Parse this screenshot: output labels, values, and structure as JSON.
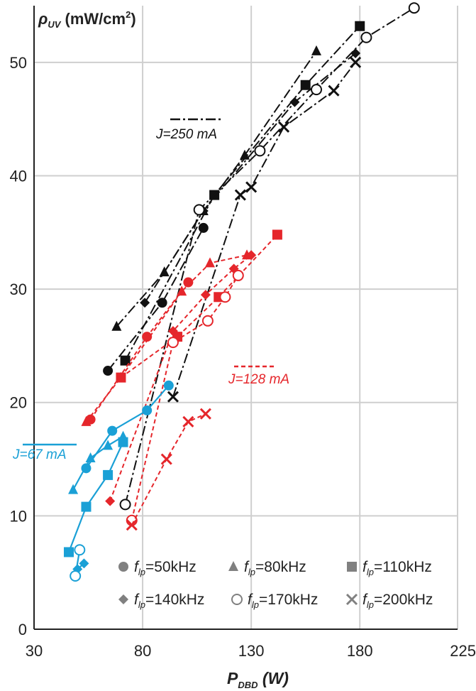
{
  "chart_data": {
    "type": "line",
    "title": "",
    "ylabel": {
      "main": "ρ",
      "sub": "UV",
      "unit_pre": "(mW/cm",
      "unit_sup": "2",
      "unit_post": ")"
    },
    "xlabel": {
      "main": "P",
      "sub": "DBD",
      "unit": "(W)"
    },
    "xlim": [
      30,
      225
    ],
    "ylim": [
      0,
      55
    ],
    "xticks": [
      30,
      80,
      130,
      180,
      225
    ],
    "xtick_labels": [
      "30",
      "80",
      "130",
      "180",
      "225"
    ],
    "yticks": [
      0,
      10,
      20,
      30,
      40,
      50
    ],
    "ytick_labels": [
      "0",
      "10",
      "20",
      "30",
      "40",
      "50"
    ],
    "grid": true,
    "legend_position": "bottom-right",
    "colors": {
      "black": "#111111",
      "red": "#e5262b",
      "blue": "#1aa0d6",
      "gray": "#808080",
      "grid": "#cfcfcf"
    },
    "groups": [
      {
        "label": "J=250 mA",
        "color": "#111111",
        "dash": "14,4,3,4",
        "legend_line": true,
        "solid": false
      },
      {
        "label": "J=128 mA",
        "color": "#e5262b",
        "dash": "6,4",
        "legend_line": true,
        "solid": false
      },
      {
        "label": "J=67 mA",
        "color": "#1aa0d6",
        "dash": "",
        "legend_line": true,
        "solid": true
      }
    ],
    "legend": [
      {
        "marker": "circle",
        "pre": "f",
        "sub": "lp",
        "post": "=50kHz"
      },
      {
        "marker": "triangle",
        "pre": "f",
        "sub": "lp",
        "post": "=80kHz"
      },
      {
        "marker": "square",
        "pre": "f",
        "sub": "lp",
        "post": "=110kHz"
      },
      {
        "marker": "diamond",
        "pre": "f",
        "sub": "lp",
        "post": "=140kHz"
      },
      {
        "marker": "open-circle",
        "pre": "f",
        "sub": "lp",
        "post": "=170kHz"
      },
      {
        "marker": "cross",
        "pre": "f",
        "sub": "lp",
        "post": "=200kHz"
      }
    ],
    "series": [
      {
        "group": 0,
        "marker": "circle",
        "points": [
          [
            64,
            22.8
          ],
          [
            89,
            28.8
          ],
          [
            108,
            35.4
          ]
        ]
      },
      {
        "group": 0,
        "marker": "triangle",
        "points": [
          [
            68,
            26.7
          ],
          [
            90,
            31.5
          ],
          [
            108,
            36.9
          ],
          [
            127,
            41.8
          ],
          [
            160,
            51.0
          ]
        ]
      },
      {
        "group": 0,
        "marker": "square",
        "points": [
          [
            72,
            23.7
          ],
          [
            113,
            38.3
          ],
          [
            155,
            48.0
          ],
          [
            180,
            53.2
          ]
        ]
      },
      {
        "group": 0,
        "marker": "diamond",
        "points": [
          [
            81,
            28.8
          ],
          [
            108,
            36.9
          ],
          [
            150,
            46.5
          ],
          [
            178,
            50.8
          ]
        ]
      },
      {
        "group": 0,
        "marker": "open-circle",
        "points": [
          [
            72,
            11.0
          ],
          [
            106,
            37.0
          ],
          [
            134,
            42.2
          ],
          [
            160,
            47.6
          ],
          [
            183,
            52.2
          ],
          [
            205,
            54.8
          ]
        ]
      },
      {
        "group": 0,
        "marker": "cross",
        "points": [
          [
            94,
            20.5
          ],
          [
            125,
            38.3
          ],
          [
            130,
            39.0
          ],
          [
            145,
            44.3
          ],
          [
            168,
            47.5
          ],
          [
            178,
            50.0
          ]
        ]
      },
      {
        "group": 1,
        "marker": "circle",
        "points": [
          [
            56,
            18.5
          ],
          [
            82,
            25.8
          ],
          [
            101,
            30.6
          ]
        ]
      },
      {
        "group": 1,
        "marker": "triangle",
        "points": [
          [
            54,
            18.3
          ],
          [
            70,
            22.2
          ],
          [
            98,
            29.8
          ],
          [
            111,
            32.3
          ],
          [
            128,
            33.0
          ]
        ]
      },
      {
        "group": 1,
        "marker": "square",
        "points": [
          [
            70,
            22.2
          ],
          [
            96,
            25.8
          ],
          [
            115,
            29.3
          ],
          [
            142,
            34.8
          ]
        ]
      },
      {
        "group": 1,
        "marker": "diamond",
        "points": [
          [
            65,
            11.3
          ],
          [
            94,
            26.3
          ],
          [
            109,
            29.5
          ],
          [
            122,
            31.8
          ],
          [
            130,
            33.0
          ]
        ]
      },
      {
        "group": 1,
        "marker": "open-circle",
        "points": [
          [
            75,
            9.6
          ],
          [
            94,
            25.3
          ],
          [
            110,
            27.2
          ],
          [
            118,
            29.3
          ],
          [
            124,
            31.2
          ]
        ]
      },
      {
        "group": 1,
        "marker": "cross",
        "points": [
          [
            75,
            9.2
          ],
          [
            91,
            15.0
          ],
          [
            101,
            18.3
          ],
          [
            109,
            19.0
          ]
        ]
      },
      {
        "group": 2,
        "marker": "circle",
        "points": [
          [
            54,
            14.2
          ],
          [
            66,
            17.5
          ],
          [
            82,
            19.3
          ],
          [
            92,
            21.5
          ]
        ]
      },
      {
        "group": 2,
        "marker": "triangle",
        "points": [
          [
            48,
            12.3
          ],
          [
            56,
            15.1
          ],
          [
            64,
            16.2
          ],
          [
            71,
            17.0
          ]
        ]
      },
      {
        "group": 2,
        "marker": "square",
        "points": [
          [
            46,
            6.8
          ],
          [
            54,
            10.8
          ],
          [
            64,
            13.6
          ],
          [
            71,
            16.5
          ]
        ]
      },
      {
        "group": 2,
        "marker": "diamond",
        "points": [
          [
            50,
            5.3
          ],
          [
            53,
            5.8
          ]
        ]
      },
      {
        "group": 2,
        "marker": "open-circle",
        "points": [
          [
            49,
            4.7
          ],
          [
            51,
            7.0
          ]
        ]
      }
    ]
  }
}
